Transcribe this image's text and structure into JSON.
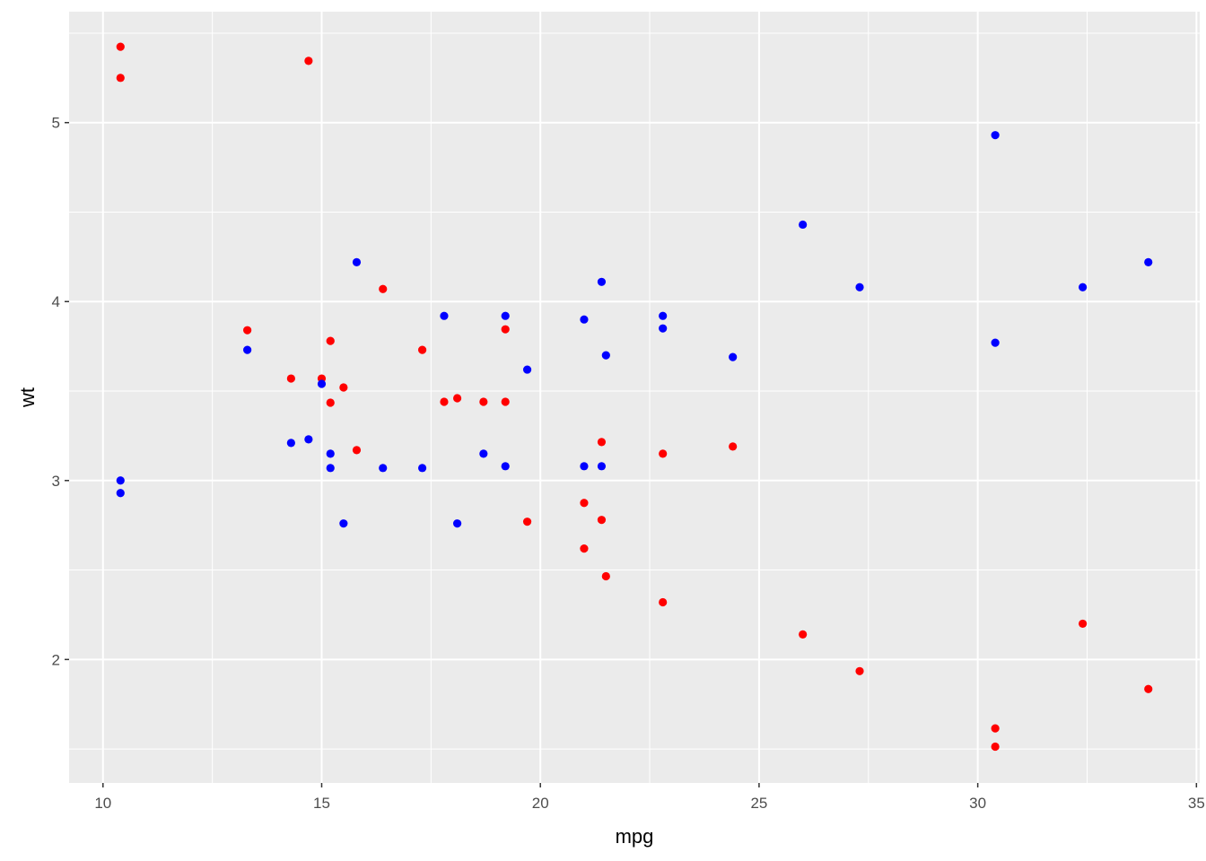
{
  "chart_data": {
    "type": "scatter",
    "title": "",
    "xlabel": "mpg",
    "ylabel": "wt",
    "xlim": [
      9.225,
      35.075
    ],
    "ylim": [
      1.31,
      5.62
    ],
    "x_ticks": [
      10,
      15,
      20,
      25,
      30,
      35
    ],
    "y_ticks": [
      2,
      3,
      4,
      5
    ],
    "x_minor_ticks": [
      12.5,
      17.5,
      22.5,
      27.5,
      32.5
    ],
    "y_minor_ticks": [
      1.5,
      2.5,
      3.5,
      4.5,
      5.5
    ],
    "grid": true,
    "legend": "none",
    "colors": {
      "panel": "#ebebeb",
      "grid": "#ffffff",
      "red": "#ff0000",
      "blue": "#0000ff"
    },
    "series": [
      {
        "color": "#ff0000",
        "points": [
          [
            21.0,
            2.62
          ],
          [
            21.0,
            2.875
          ],
          [
            22.8,
            2.32
          ],
          [
            21.4,
            3.215
          ],
          [
            18.7,
            3.44
          ],
          [
            18.1,
            3.46
          ],
          [
            14.3,
            3.57
          ],
          [
            24.4,
            3.19
          ],
          [
            22.8,
            3.15
          ],
          [
            19.2,
            3.44
          ],
          [
            17.8,
            3.44
          ],
          [
            16.4,
            4.07
          ],
          [
            17.3,
            3.73
          ],
          [
            15.2,
            3.78
          ],
          [
            10.4,
            5.25
          ],
          [
            10.4,
            5.424
          ],
          [
            14.7,
            5.345
          ],
          [
            32.4,
            2.2
          ],
          [
            30.4,
            1.615
          ],
          [
            33.9,
            1.835
          ],
          [
            21.5,
            2.465
          ],
          [
            15.5,
            3.52
          ],
          [
            15.2,
            3.435
          ],
          [
            13.3,
            3.84
          ],
          [
            19.2,
            3.845
          ],
          [
            27.3,
            1.935
          ],
          [
            26.0,
            2.14
          ],
          [
            30.4,
            1.513
          ],
          [
            15.8,
            3.17
          ],
          [
            19.7,
            2.77
          ],
          [
            15.0,
            3.57
          ],
          [
            21.4,
            2.78
          ]
        ]
      },
      {
        "color": "#0000ff",
        "points": [
          [
            21.0,
            3.9
          ],
          [
            21.0,
            3.08
          ],
          [
            22.8,
            3.85
          ],
          [
            21.4,
            3.08
          ],
          [
            18.7,
            3.15
          ],
          [
            18.1,
            2.76
          ],
          [
            14.3,
            3.21
          ],
          [
            24.4,
            3.69
          ],
          [
            22.8,
            3.92
          ],
          [
            19.2,
            3.92
          ],
          [
            17.8,
            3.92
          ],
          [
            16.4,
            3.07
          ],
          [
            17.3,
            3.07
          ],
          [
            15.2,
            3.07
          ],
          [
            10.4,
            2.93
          ],
          [
            10.4,
            3.0
          ],
          [
            14.7,
            3.23
          ],
          [
            32.4,
            4.08
          ],
          [
            30.4,
            4.93
          ],
          [
            33.9,
            4.22
          ],
          [
            21.5,
            3.7
          ],
          [
            15.5,
            2.76
          ],
          [
            15.2,
            3.15
          ],
          [
            13.3,
            3.73
          ],
          [
            19.2,
            3.08
          ],
          [
            27.3,
            4.08
          ],
          [
            26.0,
            4.43
          ],
          [
            30.4,
            3.77
          ],
          [
            15.8,
            4.22
          ],
          [
            19.7,
            3.62
          ],
          [
            15.0,
            3.54
          ],
          [
            21.4,
            4.11
          ]
        ]
      }
    ]
  }
}
